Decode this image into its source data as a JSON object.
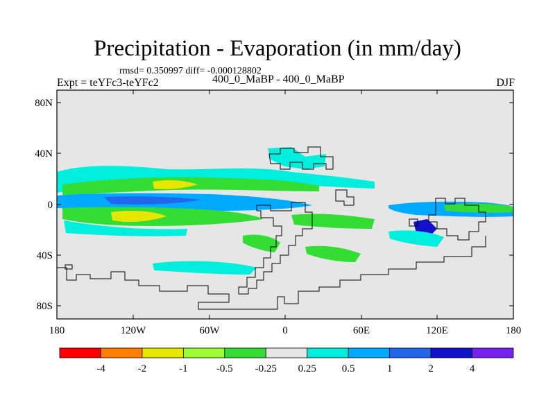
{
  "title": "Precipitation - Evaporation (in mm/day)",
  "stats": "rmsd= 0.350997 diff= -0.000128802",
  "experiment": "Expt = teYFc3-teYFc2",
  "period": "400_0_MaBP - 400_0_MaBP",
  "season": "DJF",
  "axes": {
    "lat_labels": [
      "80N",
      "40N",
      "0",
      "40S",
      "80S"
    ],
    "lon_labels": [
      "180",
      "120W",
      "60W",
      "0",
      "60E",
      "120E",
      "180"
    ]
  },
  "colorbar": {
    "colors": [
      "#ff0000",
      "#ff8000",
      "#e6e600",
      "#99ff33",
      "#33dd33",
      "#e6e6e6",
      "#00eedd",
      "#00aaff",
      "#2266ee",
      "#1111cc",
      "#7722ee"
    ],
    "labels": [
      "-4",
      "-2",
      "-1",
      "-0.5",
      "-0.25",
      "0.25",
      "0.5",
      "1",
      "2",
      "4"
    ]
  },
  "map_colors": {
    "background": "#e6e6e6",
    "land_outline": "#000000"
  }
}
